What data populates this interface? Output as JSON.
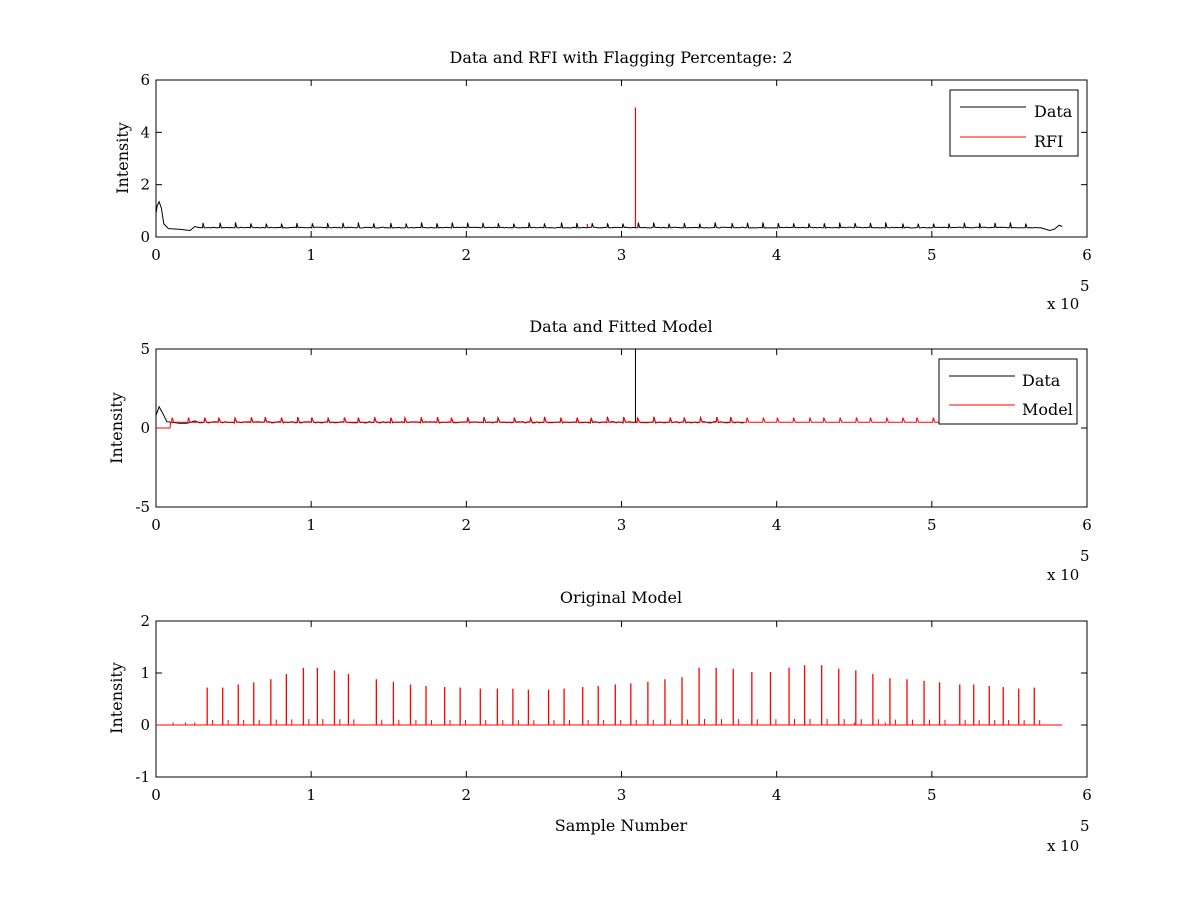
{
  "colors": {
    "data": "#000000",
    "rfi": "#ff0000",
    "axes": "#000000",
    "background": "#ffffff"
  },
  "chart_data": [
    {
      "type": "line",
      "title": "Data and RFI with Flagging Percentage: 2",
      "xlabel": "",
      "ylabel": "Intensity",
      "xlim": [
        0,
        600000
      ],
      "ylim": [
        0,
        6
      ],
      "xticks": [
        0,
        1,
        2,
        3,
        4,
        5,
        6
      ],
      "yticks": [
        0,
        2,
        4,
        6
      ],
      "x_multiplier": "x 10",
      "x_exponent": "5",
      "legend": {
        "position": "top-right",
        "entries": [
          "Data",
          "RFI"
        ]
      },
      "series": [
        {
          "name": "Data",
          "color": "#000000",
          "baseline": 0.36,
          "features": [
            {
              "x": 2000,
              "y": 1.35
            },
            {
              "x": 22000,
              "y": 0.25
            },
            {
              "x": 25000,
              "y": 0.4
            },
            {
              "x": 576000,
              "y": 0.25
            },
            {
              "x": 582000,
              "y": 0.45
            }
          ]
        },
        {
          "name": "RFI",
          "color": "#ff0000",
          "features": [
            {
              "x": 309000,
              "y": 4.95
            },
            {
              "x": 278000,
              "y": 0.5
            }
          ]
        }
      ]
    },
    {
      "type": "line",
      "title": "Data and Fitted Model",
      "xlabel": "",
      "ylabel": "Intensity",
      "xlim": [
        0,
        600000
      ],
      "ylim": [
        -5,
        5
      ],
      "xticks": [
        0,
        1,
        2,
        3,
        4,
        5,
        6
      ],
      "yticks": [
        -5,
        0,
        5
      ],
      "x_multiplier": "x 10",
      "x_exponent": "5",
      "legend": {
        "position": "top-right",
        "entries": [
          "Data",
          "Model"
        ]
      },
      "series": [
        {
          "name": "Data",
          "color": "#000000",
          "baseline": 0.36,
          "features": [
            {
              "x": 2000,
              "y": 1.35
            },
            {
              "x": 309000,
              "y": 5.0
            }
          ]
        },
        {
          "name": "Model",
          "color": "#ff0000",
          "baseline": 0.36,
          "features": [
            {
              "x": 0,
              "y": 0.0
            },
            {
              "x": 9000,
              "y": 0.0
            }
          ]
        }
      ]
    },
    {
      "type": "line",
      "title": "Original Model",
      "xlabel": "Sample Number",
      "ylabel": "Intensity",
      "xlim": [
        0,
        600000
      ],
      "ylim": [
        -1,
        2
      ],
      "xticks": [
        0,
        1,
        2,
        3,
        4,
        5,
        6
      ],
      "yticks": [
        -1,
        0,
        1,
        2
      ],
      "x_multiplier": "x 10",
      "x_exponent": "5",
      "legend": null,
      "series": [
        {
          "name": "",
          "color": "#ff0000",
          "baseline": 0.0,
          "peaks": [
            {
              "x": 33000,
              "y": 0.72
            },
            {
              "x": 43000,
              "y": 0.72
            },
            {
              "x": 53000,
              "y": 0.78
            },
            {
              "x": 63000,
              "y": 0.82
            },
            {
              "x": 74000,
              "y": 0.88
            },
            {
              "x": 84000,
              "y": 0.98
            },
            {
              "x": 95000,
              "y": 1.1
            },
            {
              "x": 104000,
              "y": 1.1
            },
            {
              "x": 115000,
              "y": 1.05
            },
            {
              "x": 124000,
              "y": 0.98
            },
            {
              "x": 142000,
              "y": 0.88
            },
            {
              "x": 153000,
              "y": 0.83
            },
            {
              "x": 164000,
              "y": 0.78
            },
            {
              "x": 174000,
              "y": 0.75
            },
            {
              "x": 186000,
              "y": 0.73
            },
            {
              "x": 196000,
              "y": 0.72
            },
            {
              "x": 209000,
              "y": 0.7
            },
            {
              "x": 220000,
              "y": 0.7
            },
            {
              "x": 230000,
              "y": 0.7
            },
            {
              "x": 240000,
              "y": 0.68
            },
            {
              "x": 253000,
              "y": 0.68
            },
            {
              "x": 263000,
              "y": 0.7
            },
            {
              "x": 275000,
              "y": 0.73
            },
            {
              "x": 285000,
              "y": 0.75
            },
            {
              "x": 296000,
              "y": 0.78
            },
            {
              "x": 306000,
              "y": 0.8
            },
            {
              "x": 317000,
              "y": 0.83
            },
            {
              "x": 328000,
              "y": 0.88
            },
            {
              "x": 339000,
              "y": 0.92
            },
            {
              "x": 350000,
              "y": 1.1
            },
            {
              "x": 361000,
              "y": 1.1
            },
            {
              "x": 372000,
              "y": 1.08
            },
            {
              "x": 384000,
              "y": 1.02
            },
            {
              "x": 396000,
              "y": 1.02
            },
            {
              "x": 408000,
              "y": 1.1
            },
            {
              "x": 418000,
              "y": 1.15
            },
            {
              "x": 429000,
              "y": 1.15
            },
            {
              "x": 440000,
              "y": 1.08
            },
            {
              "x": 451000,
              "y": 1.05
            },
            {
              "x": 462000,
              "y": 0.98
            },
            {
              "x": 473000,
              "y": 0.9
            },
            {
              "x": 484000,
              "y": 0.88
            },
            {
              "x": 495000,
              "y": 0.85
            },
            {
              "x": 505000,
              "y": 0.82
            },
            {
              "x": 518000,
              "y": 0.78
            },
            {
              "x": 527000,
              "y": 0.78
            },
            {
              "x": 537000,
              "y": 0.75
            },
            {
              "x": 546000,
              "y": 0.73
            },
            {
              "x": 556000,
              "y": 0.7
            },
            {
              "x": 566000,
              "y": 0.72
            }
          ]
        }
      ]
    }
  ]
}
